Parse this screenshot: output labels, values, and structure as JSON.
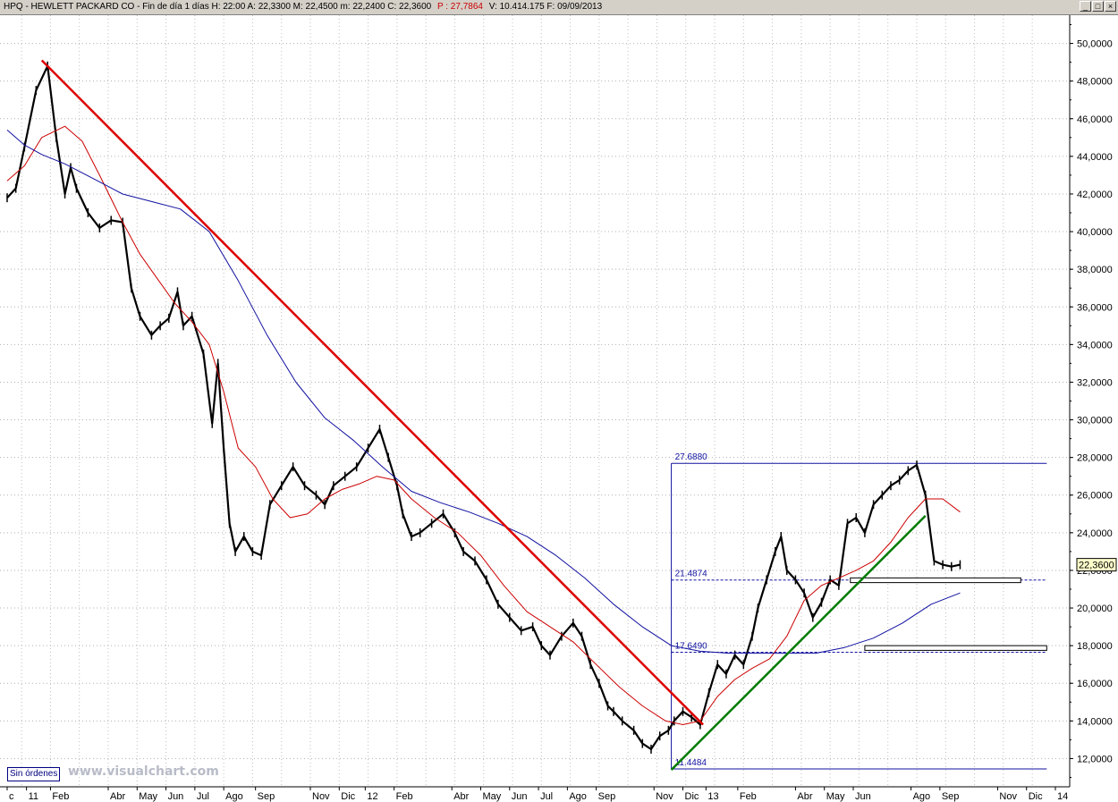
{
  "header": {
    "text_main": "HPQ - HEWLETT PACKARD CO - Fin de día 1 días H: 22:00  A: 22,3300  M: 22,4500  m: 22,2400  C: 22,3600",
    "text_p": "P : 27,7864",
    "text_tail": "V: 10.414.175  F: 09/09/2013"
  },
  "window_buttons": {
    "minimize": "_",
    "restore": "□",
    "close": "×"
  },
  "status": {
    "sin_ordenes": "Sin órdenes",
    "watermark": "www.visualchart.com"
  },
  "chart_data": {
    "type": "line",
    "title": "HPQ - HEWLETT PACKARD CO",
    "ylim": [
      10.5,
      51.5
    ],
    "y_ticks": [
      "50,0000",
      "48,0000",
      "46,0000",
      "44,0000",
      "42,0000",
      "40,0000",
      "38,0000",
      "36,0000",
      "34,0000",
      "32,0000",
      "30,0000",
      "28,0000",
      "26,0000",
      "24,0000",
      "22,0000",
      "20,0000",
      "18,0000",
      "16,0000",
      "14,0000",
      "12,0000"
    ],
    "y_tick_values": [
      50,
      48,
      46,
      44,
      42,
      40,
      38,
      36,
      34,
      32,
      30,
      28,
      26,
      24,
      22,
      20,
      18,
      16,
      14,
      12
    ],
    "x_ticks": [
      "c",
      "11",
      "Feb",
      "Abr",
      "May",
      "Jun",
      "Jul",
      "Ago",
      "Sep",
      "Nov",
      "Dic",
      "12",
      "Feb",
      "Abr",
      "May",
      "Jun",
      "Jul",
      "Ago",
      "Sep",
      "Nov",
      "Dic",
      "13",
      "Feb",
      "Abr",
      "May",
      "Jun",
      "Ago",
      "Sep",
      "Nov",
      "Dic",
      "14"
    ],
    "x_tick_values": [
      0,
      0.67,
      1.5,
      3.5,
      4.5,
      5.5,
      6.5,
      7.5,
      8.6,
      10.5,
      11.5,
      12.4,
      13.4,
      15.4,
      16.4,
      17.4,
      18.4,
      19.4,
      20.4,
      22.4,
      23.4,
      24.2,
      25.3,
      27.3,
      28.3,
      29.3,
      31.3,
      32.3,
      34.3,
      35.3,
      36.3
    ],
    "grid": true,
    "last_price": "22,3600",
    "series": [
      {
        "name": "price",
        "color": "#000000",
        "x": [
          0,
          0.3,
          0.6,
          1.0,
          1.4,
          1.7,
          2.0,
          2.2,
          2.4,
          2.8,
          3.2,
          3.6,
          4.0,
          4.3,
          4.6,
          5.0,
          5.3,
          5.6,
          5.9,
          6.1,
          6.4,
          6.8,
          7.1,
          7.3,
          7.5,
          7.7,
          7.9,
          8.2,
          8.5,
          8.8,
          9.1,
          9.5,
          9.9,
          10.3,
          10.7,
          11.0,
          11.3,
          11.7,
          12.1,
          12.5,
          12.9,
          13.2,
          13.5,
          13.7,
          14.0,
          14.3,
          14.7,
          15.1,
          15.5,
          15.8,
          16.2,
          16.6,
          17.0,
          17.4,
          17.8,
          18.2,
          18.5,
          18.8,
          19.2,
          19.6,
          19.9,
          20.2,
          20.5,
          20.8,
          21.0,
          21.3,
          21.7,
          22.0,
          22.3,
          22.6,
          22.9,
          23.1,
          23.4,
          23.7,
          24.0,
          24.3,
          24.6,
          24.9,
          25.2,
          25.5,
          25.8,
          26.0,
          26.3,
          26.6,
          26.8,
          27.0,
          27.3,
          27.6,
          27.9,
          28.2,
          28.5,
          28.8,
          29.1,
          29.4,
          29.7,
          30.0,
          30.3,
          30.6,
          30.9,
          31.2,
          31.5,
          31.8,
          32.1,
          32.4,
          32.7,
          33.0
        ],
        "y": [
          41.8,
          42.3,
          44.5,
          47.5,
          48.8,
          45.0,
          42.0,
          43.4,
          42.3,
          41.0,
          40.2,
          40.6,
          40.5,
          37.0,
          35.5,
          34.5,
          35.0,
          35.4,
          36.8,
          35.0,
          35.5,
          33.5,
          29.8,
          33.0,
          28.5,
          24.5,
          23.0,
          23.8,
          23.0,
          22.8,
          25.5,
          26.5,
          27.5,
          26.5,
          26.0,
          25.5,
          26.5,
          27.0,
          27.5,
          28.5,
          29.5,
          28.0,
          26.5,
          25.0,
          23.8,
          24.0,
          24.5,
          25.0,
          24.0,
          23.0,
          22.5,
          21.5,
          20.2,
          19.5,
          18.8,
          19.0,
          18.0,
          17.5,
          18.5,
          19.2,
          18.5,
          17.0,
          16.0,
          14.8,
          14.5,
          14.0,
          13.5,
          12.8,
          12.5,
          13.2,
          13.5,
          14.0,
          14.5,
          14.2,
          13.8,
          15.5,
          17.0,
          16.5,
          17.5,
          17.0,
          18.5,
          20.0,
          21.5,
          23.0,
          23.8,
          22.0,
          21.5,
          20.8,
          19.5,
          20.3,
          21.5,
          21.2,
          24.5,
          24.8,
          24.0,
          25.5,
          26.0,
          26.5,
          26.8,
          27.3,
          27.6,
          26.0,
          22.5,
          22.3,
          22.2,
          22.3
        ]
      },
      {
        "name": "ma_red",
        "color": "#cc0000",
        "x": [
          0,
          0.6,
          1.2,
          2.0,
          2.6,
          3.2,
          4.0,
          4.6,
          5.2,
          5.8,
          6.4,
          7.0,
          7.5,
          8.0,
          8.6,
          9.2,
          9.8,
          10.4,
          11.0,
          11.6,
          12.2,
          12.8,
          13.4,
          14.0,
          14.8,
          15.6,
          16.4,
          17.2,
          18.0,
          18.8,
          19.6,
          20.4,
          21.2,
          22.0,
          22.8,
          23.4,
          24.0,
          24.6,
          25.2,
          25.8,
          26.4,
          27.0,
          27.6,
          28.2,
          28.8,
          29.4,
          30.0,
          30.6,
          31.2,
          31.8,
          32.4,
          33.0
        ],
        "y": [
          42.7,
          43.5,
          45.0,
          45.6,
          44.8,
          43.0,
          40.5,
          38.8,
          37.5,
          36.2,
          35.2,
          34.0,
          31.5,
          28.5,
          27.5,
          25.8,
          24.8,
          25.0,
          25.8,
          26.3,
          26.6,
          27.0,
          26.8,
          25.8,
          24.8,
          24.0,
          22.8,
          21.2,
          19.8,
          19.0,
          18.2,
          17.0,
          15.8,
          14.8,
          14.0,
          13.8,
          14.0,
          15.3,
          16.2,
          16.8,
          17.3,
          18.5,
          20.4,
          21.2,
          21.6,
          22.0,
          22.5,
          23.5,
          24.8,
          25.8,
          25.8,
          25.1
        ]
      },
      {
        "name": "ma_blue",
        "color": "#1010a0",
        "x": [
          0,
          0.6,
          1.2,
          2.0,
          3.0,
          4.0,
          5.0,
          6.0,
          7.0,
          8.0,
          9.0,
          10.0,
          11.0,
          12.0,
          13.0,
          14.0,
          15.0,
          16.0,
          17.0,
          18.0,
          19.0,
          20.0,
          21.0,
          22.0,
          23.0,
          24.0,
          25.0,
          26.0,
          27.0,
          28.0,
          29.0,
          30.0,
          31.0,
          32.0,
          33.0
        ],
        "y": [
          45.4,
          44.6,
          44.1,
          43.6,
          42.8,
          42.0,
          41.6,
          41.2,
          40.0,
          37.4,
          34.5,
          32.0,
          30.1,
          28.9,
          27.5,
          26.2,
          25.6,
          25.1,
          24.5,
          23.8,
          22.8,
          21.6,
          20.2,
          19.0,
          18.0,
          17.7,
          17.6,
          17.6,
          17.6,
          17.6,
          17.9,
          18.4,
          19.2,
          20.2,
          20.8
        ]
      }
    ],
    "trendlines": [
      {
        "name": "downtrend",
        "color": "#dd0000",
        "from": [
          1.2,
          49.1
        ],
        "to": [
          24.1,
          13.8
        ]
      },
      {
        "name": "uptrend",
        "color": "#007a00",
        "from": [
          23.0,
          11.4
        ],
        "to": [
          31.8,
          24.9
        ]
      }
    ],
    "fib_levels": [
      {
        "label": "27.6880",
        "value": 27.688,
        "solid": true
      },
      {
        "label": "21.4874",
        "value": 21.487,
        "solid": false
      },
      {
        "label": "17.6490",
        "value": 17.649,
        "solid": false
      },
      {
        "label": "11.4484",
        "value": 11.448,
        "solid": true
      }
    ],
    "fib_x_start": 23.0,
    "fib_x_end": 36.0,
    "zones": [
      {
        "name": "zone-upper",
        "x0": 29.2,
        "x1": 35.1,
        "y0": 21.35,
        "y1": 21.6
      },
      {
        "name": "zone-lower",
        "x0": 29.7,
        "x1": 36.0,
        "y0": 17.75,
        "y1": 18.0
      }
    ]
  }
}
